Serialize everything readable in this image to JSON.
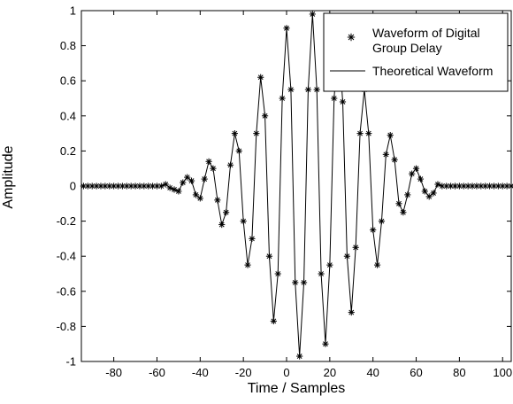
{
  "chart_data": {
    "type": "line",
    "xlabel": "Time / Samples",
    "ylabel": "Amplitude",
    "xlim": [
      -95,
      104
    ],
    "ylim": [
      -1,
      1
    ],
    "x_ticks": [
      -80,
      -60,
      -40,
      -20,
      0,
      20,
      40,
      60,
      80,
      100
    ],
    "y_ticks": [
      -1,
      -0.8,
      -0.6,
      -0.4,
      -0.2,
      0,
      0.2,
      0.4,
      0.6,
      0.8,
      1
    ],
    "x_tick_labels": [
      "-80",
      "-60",
      "-40",
      "-20",
      "0",
      "20",
      "40",
      "60",
      "80",
      "100"
    ],
    "y_tick_labels": [
      "-1",
      "-0.8",
      "-0.6",
      "-0.4",
      "-0.2",
      "0",
      "0.2",
      "0.4",
      "0.6",
      "0.8",
      "1"
    ],
    "grid": false,
    "legend_position": "top-right",
    "series": [
      {
        "name": "Waveform of Digital Group Delay",
        "style": "markers",
        "marker": "asterisk",
        "color": "#000000",
        "x": [
          -94,
          -92,
          -90,
          -88,
          -86,
          -84,
          -82,
          -80,
          -78,
          -76,
          -74,
          -72,
          -70,
          -68,
          -66,
          -64,
          -62,
          -60,
          -58,
          -56,
          -54,
          -52,
          -50,
          -48,
          -46,
          -44,
          -42,
          -40,
          -38,
          -36,
          -34,
          -32,
          -30,
          -28,
          -26,
          -24,
          -22,
          -20,
          -18,
          -16,
          -14,
          -12,
          -10,
          -8,
          -6,
          -4,
          -2,
          0,
          2,
          4,
          6,
          8,
          10,
          12,
          14,
          16,
          18,
          20,
          22,
          24,
          26,
          28,
          30,
          32,
          34,
          36,
          38,
          40,
          42,
          44,
          46,
          48,
          50,
          52,
          54,
          56,
          58,
          60,
          62,
          64,
          66,
          68,
          70,
          72,
          74,
          76,
          78,
          80,
          82,
          84,
          86,
          88,
          90,
          92,
          94,
          96,
          98,
          100,
          102,
          104
        ],
        "y": [
          0.0,
          0.0,
          0.0,
          0.0,
          0.0,
          0.0,
          0.0,
          0.0,
          0.0,
          0.0,
          0.0,
          0.0,
          0.0,
          0.0,
          0.0,
          0.0,
          0.0,
          0.0,
          0.0,
          0.01,
          -0.01,
          -0.02,
          -0.03,
          0.02,
          0.05,
          0.03,
          -0.05,
          -0.07,
          0.04,
          0.14,
          0.1,
          -0.08,
          -0.22,
          -0.15,
          0.12,
          0.3,
          0.2,
          -0.2,
          -0.45,
          -0.3,
          0.3,
          0.62,
          0.4,
          -0.4,
          -0.77,
          -0.5,
          0.5,
          0.9,
          0.55,
          -0.55,
          -0.97,
          -0.55,
          0.55,
          0.98,
          0.55,
          -0.5,
          -0.9,
          -0.45,
          0.5,
          0.83,
          0.48,
          -0.4,
          -0.72,
          -0.35,
          0.3,
          0.55,
          0.3,
          -0.25,
          -0.45,
          -0.2,
          0.18,
          0.29,
          0.15,
          -0.1,
          -0.15,
          -0.05,
          0.07,
          0.1,
          0.04,
          -0.03,
          -0.06,
          -0.04,
          0.01,
          0.0,
          0.0,
          0.0,
          0.0,
          0.0,
          0.0,
          0.0,
          0.0,
          0.0,
          0.0,
          0.0,
          0.0,
          0.0,
          0.0,
          0.0,
          0.0,
          0.0
        ]
      },
      {
        "name": "Theoretical Waveform",
        "style": "line",
        "color": "#000000",
        "same_as_series": 0
      }
    ]
  },
  "legend": {
    "entry1_line1": "Waveform of Digital",
    "entry1_line2": "Group Delay",
    "entry2": "Theoretical Waveform"
  }
}
